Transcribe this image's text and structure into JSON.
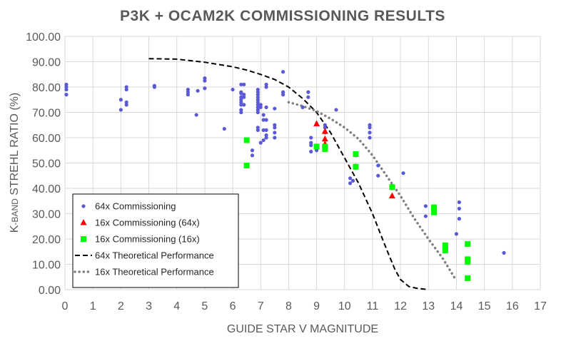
{
  "chart_data": {
    "type": "scatter",
    "title": "P3K + OCAM2K COMMISSIONING  RESULTS",
    "xlabel": "GUIDE STAR V MAGNITUDE",
    "ylabel_prefix": "K",
    "ylabel_small": "-BAND",
    "ylabel_rest": " STREHL RATIO (%)",
    "xlim": [
      0,
      17
    ],
    "ylim": [
      0,
      100
    ],
    "xticks": [
      "0",
      "1",
      "2",
      "3",
      "4",
      "5",
      "6",
      "7",
      "8",
      "9",
      "10",
      "11",
      "12",
      "13",
      "14",
      "15",
      "16",
      "17"
    ],
    "yticks": [
      "0.00",
      "10.00",
      "20.00",
      "30.00",
      "40.00",
      "50.00",
      "60.00",
      "70.00",
      "80.00",
      "90.00",
      "100.00"
    ],
    "grid": true,
    "legend_position": "bottom-left",
    "colors": {
      "s64": "#5a5ad6",
      "s64c": "#ff0000",
      "s16c": "#00ff00",
      "t64": "#000000",
      "t16": "#808080"
    },
    "series": [
      {
        "name": "64x Commissioning",
        "key": "s64",
        "marker": "circle",
        "points": [
          [
            0.05,
            77
          ],
          [
            0.05,
            79
          ],
          [
            0.05,
            80
          ],
          [
            0.05,
            81
          ],
          [
            2.0,
            71
          ],
          [
            2.0,
            75
          ],
          [
            2.2,
            73
          ],
          [
            2.2,
            74
          ],
          [
            2.2,
            79
          ],
          [
            2.2,
            80
          ],
          [
            3.2,
            80
          ],
          [
            3.2,
            80.5
          ],
          [
            4.4,
            77
          ],
          [
            4.4,
            78
          ],
          [
            4.4,
            79
          ],
          [
            4.7,
            69
          ],
          [
            4.75,
            78.5
          ],
          [
            5.0,
            79.5
          ],
          [
            5.0,
            82.5
          ],
          [
            5.0,
            83.5
          ],
          [
            5.7,
            63.5
          ],
          [
            6.0,
            79
          ],
          [
            6.3,
            70
          ],
          [
            6.3,
            71
          ],
          [
            6.3,
            73
          ],
          [
            6.3,
            74
          ],
          [
            6.3,
            75
          ],
          [
            6.3,
            76
          ],
          [
            6.3,
            77.5
          ],
          [
            6.3,
            78
          ],
          [
            6.3,
            81
          ],
          [
            6.4,
            73
          ],
          [
            6.4,
            76
          ],
          [
            6.4,
            77
          ],
          [
            6.4,
            81
          ],
          [
            6.7,
            53
          ],
          [
            6.7,
            55
          ],
          [
            6.9,
            63
          ],
          [
            6.9,
            64
          ],
          [
            6.9,
            70
          ],
          [
            6.9,
            71
          ],
          [
            6.9,
            72
          ],
          [
            6.9,
            73
          ],
          [
            6.9,
            74
          ],
          [
            6.9,
            75
          ],
          [
            6.9,
            76
          ],
          [
            6.9,
            77
          ],
          [
            6.9,
            78
          ],
          [
            6.9,
            79
          ],
          [
            7.0,
            58
          ],
          [
            7.0,
            72
          ],
          [
            7.0,
            73
          ],
          [
            7.1,
            59
          ],
          [
            7.1,
            63
          ],
          [
            7.1,
            67
          ],
          [
            7.1,
            69
          ],
          [
            7.2,
            60
          ],
          [
            7.2,
            61
          ],
          [
            7.2,
            63
          ],
          [
            7.2,
            67
          ],
          [
            7.2,
            72
          ],
          [
            7.2,
            80
          ],
          [
            7.2,
            81
          ],
          [
            7.5,
            60
          ],
          [
            7.5,
            62
          ],
          [
            7.5,
            64
          ],
          [
            7.5,
            65
          ],
          [
            7.5,
            71.5
          ],
          [
            7.8,
            77
          ],
          [
            7.8,
            78
          ],
          [
            7.8,
            86
          ],
          [
            8.5,
            72
          ],
          [
            8.7,
            76
          ],
          [
            8.7,
            78
          ],
          [
            8.8,
            54.5
          ],
          [
            8.8,
            57
          ],
          [
            8.8,
            58
          ],
          [
            8.8,
            60
          ],
          [
            9.0,
            55
          ],
          [
            9.0,
            56
          ],
          [
            9.3,
            62
          ],
          [
            9.3,
            64
          ],
          [
            9.3,
            65
          ],
          [
            9.7,
            71
          ],
          [
            10.2,
            42
          ],
          [
            10.2,
            44
          ],
          [
            10.3,
            43
          ],
          [
            10.4,
            48
          ],
          [
            10.4,
            49
          ],
          [
            10.4,
            53
          ],
          [
            10.9,
            60
          ],
          [
            10.9,
            62
          ],
          [
            10.9,
            64
          ],
          [
            10.9,
            65
          ],
          [
            11.2,
            45
          ],
          [
            11.2,
            49
          ],
          [
            11.7,
            40
          ],
          [
            11.7,
            41
          ],
          [
            12.1,
            46
          ],
          [
            12.9,
            29
          ],
          [
            12.9,
            33
          ],
          [
            14.0,
            22
          ],
          [
            14.1,
            28
          ],
          [
            14.1,
            32
          ],
          [
            14.1,
            34.5
          ],
          [
            15.7,
            14.5
          ]
        ]
      },
      {
        "name": "16x Commissioning (64x)",
        "key": "s64c",
        "marker": "triangle",
        "points": [
          [
            9.0,
            65.5
          ],
          [
            9.3,
            62.5
          ],
          [
            9.3,
            59.5
          ],
          [
            9.3,
            57.5
          ],
          [
            11.7,
            37
          ]
        ]
      },
      {
        "name": "16x Commissioning (16x)",
        "key": "s16c",
        "marker": "square",
        "points": [
          [
            6.5,
            49
          ],
          [
            6.5,
            59
          ],
          [
            9.0,
            56.5
          ],
          [
            9.3,
            55.5
          ],
          [
            9.3,
            56.5
          ],
          [
            10.4,
            48.5
          ],
          [
            10.4,
            53.5
          ],
          [
            11.7,
            40.5
          ],
          [
            13.2,
            30.5
          ],
          [
            13.2,
            31.5
          ],
          [
            13.2,
            32.5
          ],
          [
            13.6,
            15.5
          ],
          [
            13.6,
            16.5
          ],
          [
            13.6,
            17.5
          ],
          [
            14.4,
            4.5
          ],
          [
            14.4,
            11
          ],
          [
            14.4,
            12
          ],
          [
            14.4,
            18
          ]
        ]
      },
      {
        "name": "64x Theoretical Performance",
        "key": "t64",
        "style": "dashed",
        "points": [
          [
            3.0,
            91.2
          ],
          [
            4.0,
            91
          ],
          [
            5.0,
            89.8
          ],
          [
            6.0,
            88
          ],
          [
            6.5,
            86.7
          ],
          [
            7.0,
            85
          ],
          [
            7.5,
            83
          ],
          [
            8.0,
            80
          ],
          [
            8.5,
            75.5
          ],
          [
            9.0,
            70
          ],
          [
            9.5,
            62
          ],
          [
            10.0,
            52
          ],
          [
            10.5,
            42
          ],
          [
            11.0,
            30
          ],
          [
            11.5,
            16
          ],
          [
            11.8,
            8
          ],
          [
            12.0,
            4
          ],
          [
            12.3,
            1.2
          ],
          [
            12.6,
            0.5
          ],
          [
            13.0,
            0
          ]
        ]
      },
      {
        "name": "16x  Theoretical Performance",
        "key": "t16",
        "style": "dotted",
        "points": [
          [
            8.0,
            74
          ],
          [
            8.5,
            72.5
          ],
          [
            9.0,
            70.5
          ],
          [
            9.5,
            67.5
          ],
          [
            10.0,
            64
          ],
          [
            10.5,
            59.5
          ],
          [
            11.0,
            53
          ],
          [
            11.5,
            45
          ],
          [
            12.0,
            37
          ],
          [
            12.5,
            28
          ],
          [
            13.0,
            20
          ],
          [
            13.5,
            12.5
          ],
          [
            14.0,
            3.5
          ]
        ]
      }
    ]
  }
}
